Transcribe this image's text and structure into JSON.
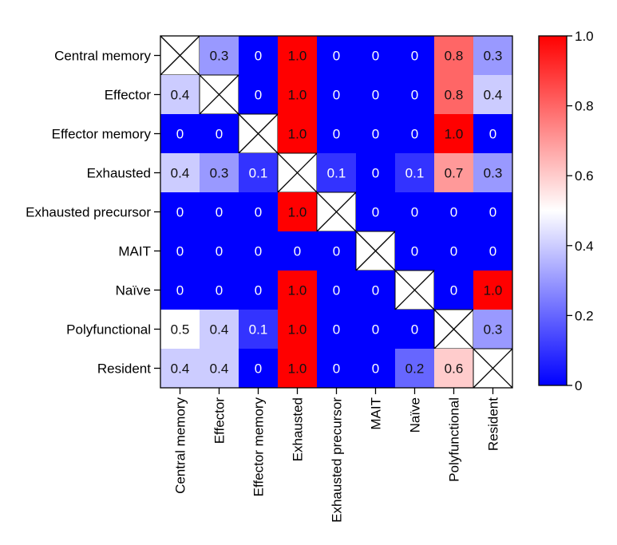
{
  "chart_data": {
    "type": "heatmap",
    "title": "",
    "xlabel": "",
    "ylabel": "",
    "rows": [
      "Central memory",
      "Effector",
      "Effector memory",
      "Exhausted",
      "Exhausted precursor",
      "MAIT",
      "Naïve",
      "Polyfunctional",
      "Resident"
    ],
    "columns": [
      "Central memory",
      "Effector",
      "Effector memory",
      "Exhausted",
      "Exhausted precursor",
      "MAIT",
      "Naïve",
      "Polyfunctional",
      "Resident"
    ],
    "values": [
      [
        null,
        0.3,
        0,
        1.0,
        0,
        0,
        0,
        0.8,
        0.3
      ],
      [
        0.4,
        null,
        0,
        1.0,
        0,
        0,
        0,
        0.8,
        0.4
      ],
      [
        0,
        0,
        null,
        1.0,
        0,
        0,
        0,
        1.0,
        0
      ],
      [
        0.4,
        0.3,
        0.1,
        null,
        0.1,
        0,
        0.1,
        0.7,
        0.3
      ],
      [
        0,
        0,
        0,
        1.0,
        null,
        0,
        0,
        0,
        0
      ],
      [
        0,
        0,
        0,
        0,
        0,
        null,
        0,
        0,
        0
      ],
      [
        0,
        0,
        0,
        1.0,
        0,
        0,
        null,
        0,
        1.0
      ],
      [
        0.5,
        0.4,
        0.1,
        1.0,
        0,
        0,
        0,
        null,
        0.3
      ],
      [
        0.4,
        0.4,
        0,
        1.0,
        0,
        0,
        0.2,
        0.6,
        null
      ]
    ],
    "cell_labels": [
      [
        "",
        "0.3",
        "0",
        "1.0",
        "0",
        "0",
        "0",
        "0.8",
        "0.3"
      ],
      [
        "0.4",
        "",
        "0",
        "1.0",
        "0",
        "0",
        "0",
        "0.8",
        "0.4"
      ],
      [
        "0",
        "0",
        "",
        "1.0",
        "0",
        "0",
        "0",
        "1.0",
        "0"
      ],
      [
        "0.4",
        "0.3",
        "0.1",
        "",
        "0.1",
        "0",
        "0.1",
        "0.7",
        "0.3"
      ],
      [
        "0",
        "0",
        "0",
        "1.0",
        "",
        "0",
        "0",
        "0",
        "0"
      ],
      [
        "0",
        "0",
        "0",
        "0",
        "0",
        "",
        "0",
        "0",
        "0"
      ],
      [
        "0",
        "0",
        "0",
        "1.0",
        "0",
        "0",
        "",
        "0",
        "1.0"
      ],
      [
        "0.5",
        "0.4",
        "0.1",
        "1.0",
        "0",
        "0",
        "0",
        "",
        "0.3"
      ],
      [
        "0.4",
        "0.4",
        "0",
        "1.0",
        "0",
        "0",
        "0.2",
        "0.6",
        ""
      ]
    ],
    "diagonal": "crossed-out",
    "colorbar": {
      "range": [
        0,
        1.0
      ],
      "ticks": [
        0,
        0.2,
        0.4,
        0.6,
        0.8,
        1.0
      ],
      "tick_labels": [
        "0",
        "0.2",
        "0.4",
        "0.6",
        "0.8",
        "1.0"
      ],
      "colors": {
        "low": "#0000ff",
        "mid": "#ffffff",
        "high": "#ff0000"
      },
      "mid_value": 0.5
    },
    "legend_position": "right"
  }
}
